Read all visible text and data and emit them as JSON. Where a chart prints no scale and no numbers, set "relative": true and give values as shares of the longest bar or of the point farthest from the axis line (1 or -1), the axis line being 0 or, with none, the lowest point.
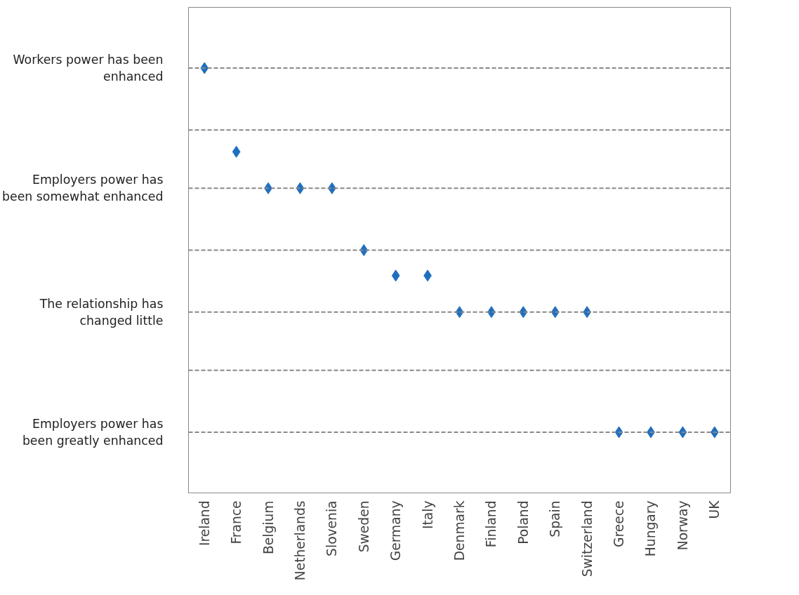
{
  "chart_data": {
    "type": "scatter",
    "relative": true,
    "categories": [
      "Ireland",
      "France",
      "Belgium",
      "Netherlands",
      "Slovenia",
      "Sweden",
      "Germany",
      "Italy",
      "Denmark",
      "Finland",
      "Poland",
      "Spain",
      "Switzerland",
      "Greece",
      "Hungary",
      "Norway",
      "UK"
    ],
    "series": [
      {
        "color": "#1f6fbf",
        "values": [
          1,
          0.77,
          0.67,
          0.67,
          0.67,
          0.5,
          0.43,
          0.43,
          0.33,
          0.33,
          0.33,
          0.33,
          0.33,
          0,
          0,
          0,
          0
        ]
      }
    ],
    "ref_lines": [
      {
        "axis": "y",
        "value": 1,
        "label": "Workers power has been enhanced",
        "color": "#888888",
        "line_style": "dashed"
      },
      {
        "axis": "y",
        "value": 0.83,
        "label": null,
        "color": "#888888",
        "line_style": "dashed"
      },
      {
        "axis": "y",
        "value": 0.67,
        "label": "Employers power has been somewhat enhanced",
        "color": "#888888",
        "line_style": "dashed"
      },
      {
        "axis": "y",
        "value": 0.5,
        "label": null,
        "color": "#888888",
        "line_style": "dashed"
      },
      {
        "axis": "y",
        "value": 0.33,
        "label": "The relationship has changed little",
        "color": "#888888",
        "line_style": "dashed"
      },
      {
        "axis": "y",
        "value": 0.17,
        "label": null,
        "color": "#888888",
        "line_style": "dashed"
      },
      {
        "axis": "y",
        "value": 0,
        "label": "Employers power has been greatly enhanced",
        "color": "#888888",
        "line_style": "dashed"
      }
    ],
    "marker": "diamond"
  }
}
